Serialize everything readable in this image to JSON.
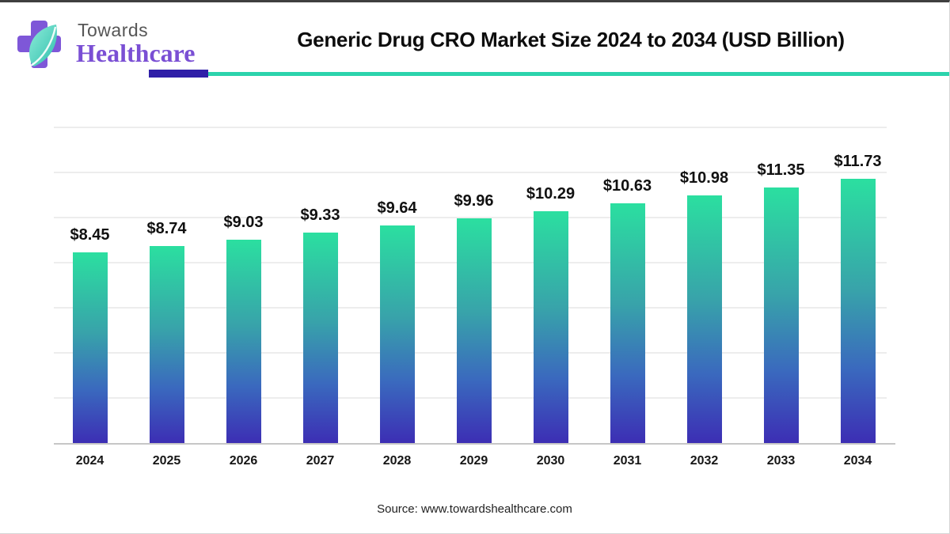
{
  "logo": {
    "brand_top": "Towards",
    "brand_bottom": "Healthcare",
    "cross_color": "#7e57d8",
    "leaf_color_light": "#8fecd9",
    "leaf_color_dark": "#2fbfad"
  },
  "header": {
    "accent_purple": "#2f1fa8",
    "accent_teal": "#2cd3ac"
  },
  "chart_data": {
    "type": "bar",
    "title": "Generic Drug CRO Market Size 2024 to 2034 (USD Billion)",
    "categories": [
      "2024",
      "2025",
      "2026",
      "2027",
      "2028",
      "2029",
      "2030",
      "2031",
      "2032",
      "2033",
      "2034"
    ],
    "values": [
      8.45,
      8.74,
      9.03,
      9.33,
      9.64,
      9.96,
      10.29,
      10.63,
      10.98,
      11.35,
      11.73
    ],
    "value_labels": [
      "$8.45",
      "$8.74",
      "$9.03",
      "$9.33",
      "$9.64",
      "$9.96",
      "$10.29",
      "$10.63",
      "$10.98",
      "$11.35",
      "$11.73"
    ],
    "xlabel": "",
    "ylabel": "",
    "ylim": [
      0,
      14
    ],
    "gridline_step": 2,
    "grid": true,
    "legend": "none",
    "bar_gradient_stops": [
      [
        "#2bdfa0",
        0
      ],
      [
        "#38a3aa",
        42
      ],
      [
        "#3a69be",
        72
      ],
      [
        "#3c2eb4",
        100
      ]
    ]
  },
  "footer": {
    "source": "Source: www.towardshealthcare.com"
  }
}
